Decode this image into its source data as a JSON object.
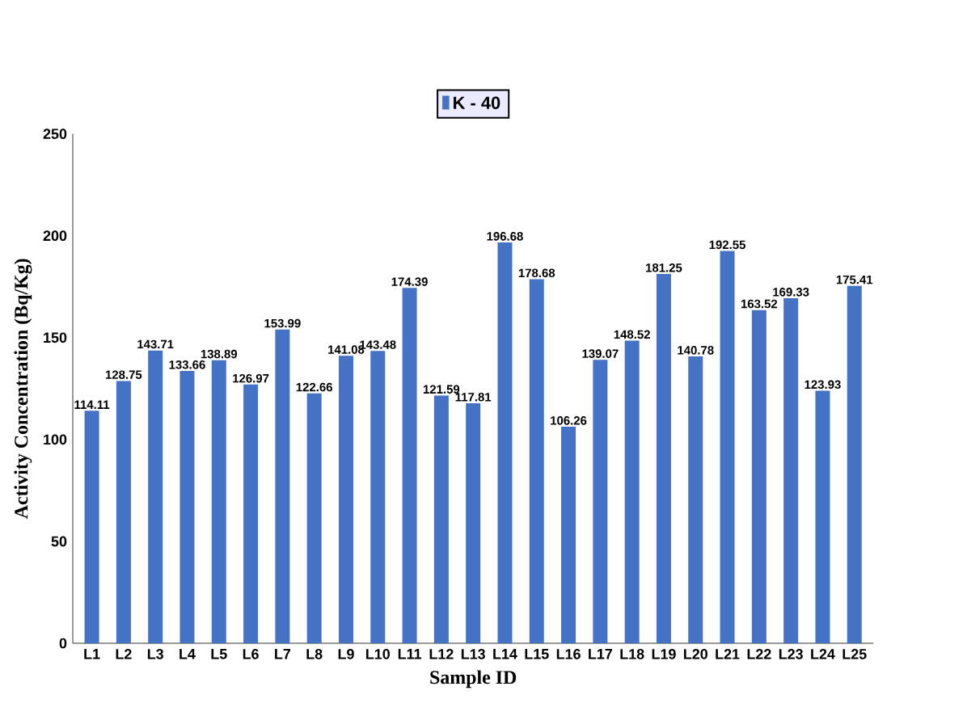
{
  "chart_data": {
    "type": "bar",
    "xlabel": "Sample ID",
    "ylabel": "Activity Concentration (Bq/Kg)",
    "categories": [
      "L1",
      "L2",
      "L3",
      "L4",
      "L5",
      "L6",
      "L7",
      "L8",
      "L9",
      "L10",
      "L11",
      "L12",
      "L13",
      "L14",
      "L15",
      "L16",
      "L17",
      "L18",
      "L19",
      "L20",
      "L21",
      "L22",
      "L23",
      "L24",
      "L25"
    ],
    "series": [
      {
        "name": "K - 40",
        "color": "#4472c4",
        "values": [
          114.11,
          128.75,
          143.71,
          133.66,
          138.89,
          126.97,
          153.99,
          122.66,
          141.08,
          143.48,
          174.39,
          121.59,
          117.81,
          196.68,
          178.68,
          106.26,
          139.07,
          148.52,
          181.25,
          140.78,
          192.55,
          163.52,
          169.33,
          123.93,
          175.41
        ]
      }
    ],
    "ylim": [
      0,
      250
    ],
    "yticks": [
      0,
      50,
      100,
      150,
      200,
      250
    ],
    "data_labels": true,
    "legend": "top",
    "grid": false
  }
}
